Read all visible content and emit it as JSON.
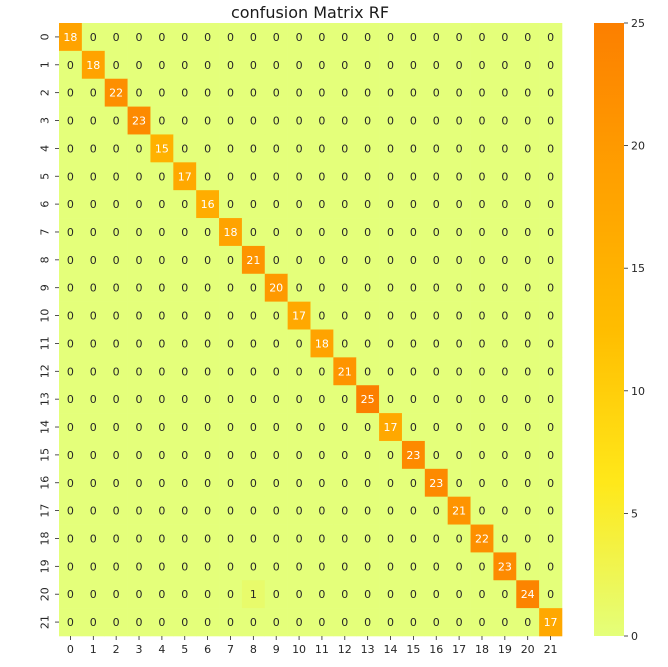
{
  "chart_data": {
    "type": "heatmap",
    "title": "confusion Matrix RF",
    "xlabel": "",
    "ylabel": "",
    "x_categories": [
      "0",
      "1",
      "2",
      "3",
      "4",
      "5",
      "6",
      "7",
      "8",
      "9",
      "10",
      "11",
      "12",
      "13",
      "14",
      "15",
      "16",
      "17",
      "18",
      "19",
      "20",
      "21"
    ],
    "y_categories": [
      "0",
      "1",
      "2",
      "3",
      "4",
      "5",
      "6",
      "7",
      "8",
      "9",
      "10",
      "11",
      "12",
      "13",
      "14",
      "15",
      "16",
      "17",
      "18",
      "19",
      "20",
      "21"
    ],
    "values": [
      [
        18,
        0,
        0,
        0,
        0,
        0,
        0,
        0,
        0,
        0,
        0,
        0,
        0,
        0,
        0,
        0,
        0,
        0,
        0,
        0,
        0,
        0
      ],
      [
        0,
        18,
        0,
        0,
        0,
        0,
        0,
        0,
        0,
        0,
        0,
        0,
        0,
        0,
        0,
        0,
        0,
        0,
        0,
        0,
        0,
        0
      ],
      [
        0,
        0,
        22,
        0,
        0,
        0,
        0,
        0,
        0,
        0,
        0,
        0,
        0,
        0,
        0,
        0,
        0,
        0,
        0,
        0,
        0,
        0
      ],
      [
        0,
        0,
        0,
        23,
        0,
        0,
        0,
        0,
        0,
        0,
        0,
        0,
        0,
        0,
        0,
        0,
        0,
        0,
        0,
        0,
        0,
        0
      ],
      [
        0,
        0,
        0,
        0,
        15,
        0,
        0,
        0,
        0,
        0,
        0,
        0,
        0,
        0,
        0,
        0,
        0,
        0,
        0,
        0,
        0,
        0
      ],
      [
        0,
        0,
        0,
        0,
        0,
        17,
        0,
        0,
        0,
        0,
        0,
        0,
        0,
        0,
        0,
        0,
        0,
        0,
        0,
        0,
        0,
        0
      ],
      [
        0,
        0,
        0,
        0,
        0,
        0,
        16,
        0,
        0,
        0,
        0,
        0,
        0,
        0,
        0,
        0,
        0,
        0,
        0,
        0,
        0,
        0
      ],
      [
        0,
        0,
        0,
        0,
        0,
        0,
        0,
        18,
        0,
        0,
        0,
        0,
        0,
        0,
        0,
        0,
        0,
        0,
        0,
        0,
        0,
        0
      ],
      [
        0,
        0,
        0,
        0,
        0,
        0,
        0,
        0,
        21,
        0,
        0,
        0,
        0,
        0,
        0,
        0,
        0,
        0,
        0,
        0,
        0,
        0
      ],
      [
        0,
        0,
        0,
        0,
        0,
        0,
        0,
        0,
        0,
        20,
        0,
        0,
        0,
        0,
        0,
        0,
        0,
        0,
        0,
        0,
        0,
        0
      ],
      [
        0,
        0,
        0,
        0,
        0,
        0,
        0,
        0,
        0,
        0,
        17,
        0,
        0,
        0,
        0,
        0,
        0,
        0,
        0,
        0,
        0,
        0
      ],
      [
        0,
        0,
        0,
        0,
        0,
        0,
        0,
        0,
        0,
        0,
        0,
        18,
        0,
        0,
        0,
        0,
        0,
        0,
        0,
        0,
        0,
        0
      ],
      [
        0,
        0,
        0,
        0,
        0,
        0,
        0,
        0,
        0,
        0,
        0,
        0,
        21,
        0,
        0,
        0,
        0,
        0,
        0,
        0,
        0,
        0
      ],
      [
        0,
        0,
        0,
        0,
        0,
        0,
        0,
        0,
        0,
        0,
        0,
        0,
        0,
        25,
        0,
        0,
        0,
        0,
        0,
        0,
        0,
        0
      ],
      [
        0,
        0,
        0,
        0,
        0,
        0,
        0,
        0,
        0,
        0,
        0,
        0,
        0,
        0,
        17,
        0,
        0,
        0,
        0,
        0,
        0,
        0
      ],
      [
        0,
        0,
        0,
        0,
        0,
        0,
        0,
        0,
        0,
        0,
        0,
        0,
        0,
        0,
        0,
        23,
        0,
        0,
        0,
        0,
        0,
        0
      ],
      [
        0,
        0,
        0,
        0,
        0,
        0,
        0,
        0,
        0,
        0,
        0,
        0,
        0,
        0,
        0,
        0,
        23,
        0,
        0,
        0,
        0,
        0
      ],
      [
        0,
        0,
        0,
        0,
        0,
        0,
        0,
        0,
        0,
        0,
        0,
        0,
        0,
        0,
        0,
        0,
        0,
        21,
        0,
        0,
        0,
        0
      ],
      [
        0,
        0,
        0,
        0,
        0,
        0,
        0,
        0,
        0,
        0,
        0,
        0,
        0,
        0,
        0,
        0,
        0,
        0,
        22,
        0,
        0,
        0
      ],
      [
        0,
        0,
        0,
        0,
        0,
        0,
        0,
        0,
        0,
        0,
        0,
        0,
        0,
        0,
        0,
        0,
        0,
        0,
        0,
        23,
        0,
        0
      ],
      [
        0,
        0,
        0,
        0,
        0,
        0,
        0,
        0,
        1,
        0,
        0,
        0,
        0,
        0,
        0,
        0,
        0,
        0,
        0,
        0,
        24,
        0
      ],
      [
        0,
        0,
        0,
        0,
        0,
        0,
        0,
        0,
        0,
        0,
        0,
        0,
        0,
        0,
        0,
        0,
        0,
        0,
        0,
        0,
        0,
        17
      ]
    ],
    "colormap": "Wistia",
    "color_low": "#e4ff7a",
    "color_high": "#fc7f00",
    "vmin": 0,
    "vmax": 25,
    "colorbar": {
      "ticks": [
        0,
        5,
        10,
        15,
        20,
        25
      ],
      "placement": "right"
    },
    "annotations": true,
    "grid": false
  }
}
